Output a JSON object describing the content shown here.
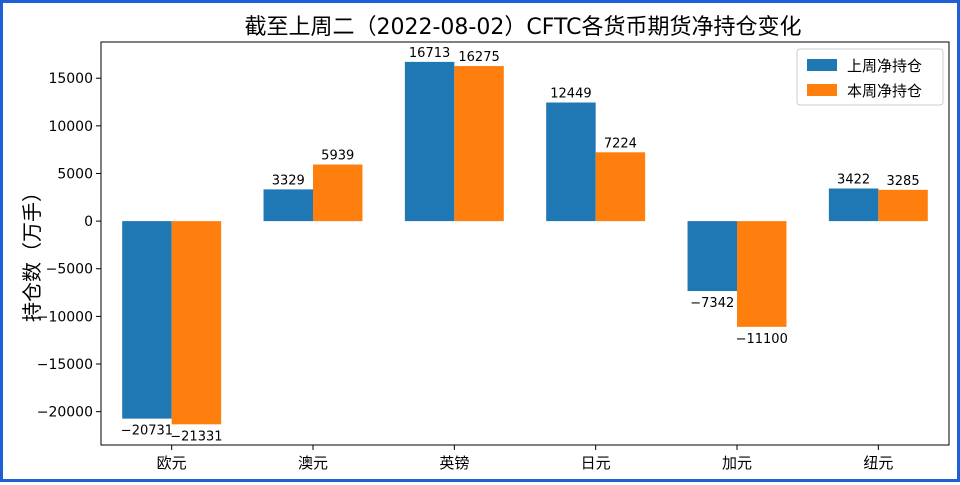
{
  "chart_data": {
    "type": "bar",
    "title": "截至上周二（2022-08-02）CFTC各货币期货净持仓变化",
    "ylabel": "持仓数（万手）",
    "xlabel": "",
    "categories": [
      "欧元",
      "澳元",
      "英镑",
      "日元",
      "加元",
      "纽元"
    ],
    "series": [
      {
        "name": "上周净持仓",
        "color": "#1f77b4",
        "values": [
          -20731,
          3329,
          16713,
          12449,
          -7342,
          3422
        ]
      },
      {
        "name": "本周净持仓",
        "color": "#ff7f0e",
        "values": [
          -21331,
          5939,
          16275,
          7224,
          -11100,
          3285
        ]
      }
    ],
    "ylim": [
      -23500,
      18800
    ],
    "yticks": [
      -20000,
      -15000,
      -10000,
      -5000,
      0,
      5000,
      10000,
      15000
    ],
    "ytick_labels": [
      "−20000",
      "−15000",
      "−10000",
      "−5000",
      "0",
      "5000",
      "10000",
      "15000"
    ],
    "grid": false,
    "legend_position": "top-right"
  }
}
